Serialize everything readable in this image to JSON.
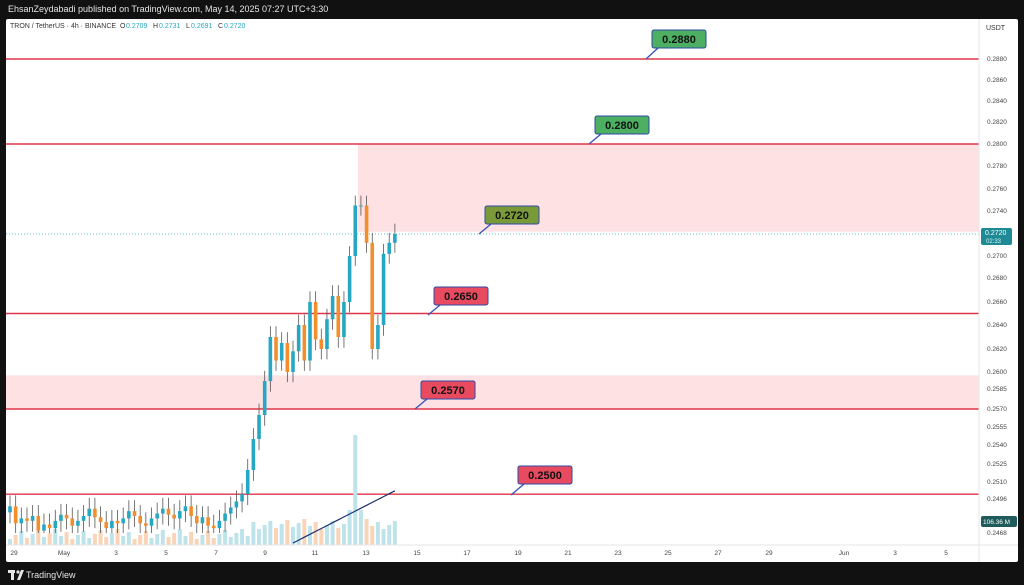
{
  "header": {
    "publish_text": "EhsanZeydabadi published on TradingView.com, May 14, 2025 07:27 UTC+3:30"
  },
  "footer": {
    "brand": "TradingView"
  },
  "colors": {
    "bull": "#26a8c4",
    "bear": "#f28e2c",
    "level_line": "#e0364a",
    "zone_fill": "#fde1e3",
    "ma_line": "#1b2f6e",
    "label_green": "#4caf62",
    "label_red": "#e84a5f",
    "label_olive": "#7a9a3a",
    "price_tag": "#1e8a96",
    "volume_tag": "#1e5b5a"
  },
  "legend": {
    "symbol": "TRON / TetherUS · 4h · BINANCE",
    "o_label": "O",
    "o_value": "0.2709",
    "h_label": "H",
    "h_value": "0.2731",
    "l_label": "L",
    "l_value": "0.2691",
    "c_label": "C",
    "c_value": "0.2720"
  },
  "axis": {
    "currency": "USDT",
    "price_tag": "0.2720",
    "timer": "02:33",
    "volume_tag": "106.36 M"
  },
  "chart_data": {
    "type": "candlestick",
    "symbol": "TRON / TetherUS",
    "timeframe": "4h",
    "exchange": "BINANCE",
    "ohlc_last": {
      "open": 0.2709,
      "high": 0.2731,
      "low": 0.2691,
      "close": 0.272
    },
    "y_ticks": [
      "0.2880",
      "0.2860",
      "0.2840",
      "0.2820",
      "0.2800",
      "0.2780",
      "0.2760",
      "0.2740",
      "0.2720",
      "0.2700",
      "0.2680",
      "0.2660",
      "0.2640",
      "0.2620",
      "0.2600",
      "0.2585",
      "0.2570",
      "0.2555",
      "0.2540",
      "0.2525",
      "0.2510",
      "0.2496",
      "0.2468"
    ],
    "x_ticks": [
      "29",
      "May",
      "3",
      "5",
      "7",
      "9",
      "11",
      "13",
      "15",
      "17",
      "19",
      "21",
      "23",
      "25",
      "27",
      "29",
      "Jun",
      "3",
      "5"
    ],
    "levels": [
      {
        "label": "0.2880",
        "value": 0.288
      },
      {
        "label": "0.2800",
        "value": 0.28
      },
      {
        "label": "0.2720",
        "value": 0.272
      },
      {
        "label": "0.2650",
        "value": 0.265
      },
      {
        "label": "0.2570",
        "value": 0.257
      },
      {
        "label": "0.2500",
        "value": 0.25
      }
    ],
    "zones": [
      {
        "from": 0.2722,
        "to": 0.28
      },
      {
        "from": 0.257,
        "to": 0.2597
      }
    ],
    "volume_last": "106.36 M"
  }
}
